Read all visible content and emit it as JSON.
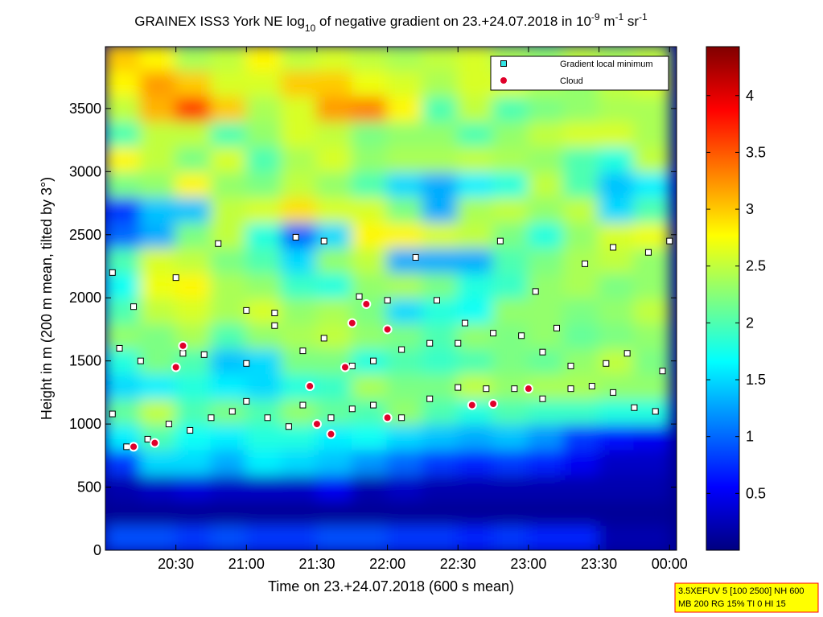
{
  "chart_data": {
    "type": "heatmap",
    "title": [
      "GRAINEX ISS3 York NE log",
      "10",
      " of negative gradient on 23.+24.07.2018 in 10",
      "-9",
      " m",
      "-1",
      " sr",
      "-1"
    ],
    "title_shift": [
      "none",
      "sub",
      "none",
      "sup",
      "none",
      "sup",
      "none",
      "sup"
    ],
    "x_label": "Time on 23.+24.07.2018 (600 s mean)",
    "y_label": "Height in m (200 m mean, tilted by 3°)",
    "note": [
      "3.5XEFUV 5 [100 2500] NH 600",
      "MB 200 RG 15% TI 0 HI 15"
    ],
    "xlim": [
      20.0,
      24.05
    ],
    "xticks": [
      {
        "value": 20.5,
        "label": "20:30"
      },
      {
        "value": 21.0,
        "label": "21:00"
      },
      {
        "value": 21.5,
        "label": "21:30"
      },
      {
        "value": 22.0,
        "label": "22:00"
      },
      {
        "value": 22.5,
        "label": "22:30"
      },
      {
        "value": 23.0,
        "label": "23:00"
      },
      {
        "value": 23.5,
        "label": "23:30"
      },
      {
        "value": 24.0,
        "label": "00:00"
      }
    ],
    "ylim": [
      0,
      3990
    ],
    "yticks": [
      0,
      500,
      1000,
      1500,
      2000,
      2500,
      3000,
      3500
    ],
    "clim": [
      0,
      4.43
    ],
    "cticks": [
      0.5,
      1,
      1.5,
      2,
      2.5,
      3,
      3.5,
      4
    ],
    "colormap": "jet",
    "x": [
      20.125,
      20.375,
      20.625,
      20.875,
      21.125,
      21.375,
      21.625,
      21.875,
      22.125,
      22.375,
      22.625,
      22.875,
      23.125,
      23.375,
      23.625,
      23.875
    ],
    "y": [
      100,
      300,
      500,
      700,
      900,
      1100,
      1300,
      1500,
      1700,
      1900,
      2100,
      2300,
      2500,
      2700,
      2900,
      3100,
      3300,
      3500,
      3700,
      3900
    ],
    "z": [
      [
        0.9,
        0.9,
        0.8,
        0.9,
        0.8,
        0.8,
        0.9,
        0.9,
        0.8,
        0.8,
        0.7,
        0.8,
        0.7,
        0.7,
        0.2,
        0.2
      ],
      [
        0.1,
        0.1,
        0.1,
        0.1,
        0.1,
        0.1,
        0.1,
        0.1,
        0.1,
        0.1,
        0.1,
        0.1,
        0.1,
        0.1,
        0.1,
        0.1
      ],
      [
        0.2,
        0.3,
        0.4,
        0.3,
        0.3,
        0.3,
        0.5,
        0.2,
        0.3,
        0.2,
        0.2,
        0.2,
        0.2,
        0.2,
        0.2,
        0.2
      ],
      [
        0.8,
        1.5,
        1.5,
        1.3,
        1.6,
        1.5,
        1.4,
        1.2,
        1.0,
        0.8,
        0.7,
        0.8,
        0.7,
        0.5,
        0.3,
        0.3
      ],
      [
        1.6,
        2.0,
        1.7,
        1.6,
        1.8,
        1.8,
        1.6,
        1.7,
        1.5,
        1.4,
        1.3,
        1.4,
        1.2,
        0.8,
        0.6,
        0.5
      ],
      [
        2.1,
        2.5,
        2.0,
        2.2,
        2.0,
        2.3,
        2.1,
        2.0,
        2.3,
        2.0,
        1.8,
        2.0,
        1.9,
        1.9,
        1.8,
        1.8
      ],
      [
        1.5,
        1.6,
        1.8,
        1.6,
        1.5,
        1.8,
        1.9,
        2.4,
        2.2,
        2.2,
        2.5,
        2.3,
        2.4,
        2.4,
        2.3,
        2.3
      ],
      [
        1.8,
        2.2,
        2.0,
        1.4,
        1.5,
        2.2,
        2.2,
        1.8,
        2.0,
        1.9,
        2.0,
        2.2,
        2.1,
        2.3,
        2.5,
        2.2
      ],
      [
        2.3,
        2.2,
        2.4,
        2.0,
        2.3,
        2.4,
        2.5,
        2.3,
        2.2,
        2.0,
        2.3,
        2.2,
        2.3,
        2.1,
        2.2,
        2.3
      ],
      [
        2.0,
        2.5,
        2.6,
        2.4,
        2.6,
        2.3,
        2.4,
        2.2,
        1.5,
        1.8,
        1.7,
        2.3,
        2.3,
        2.2,
        2.3,
        2.5
      ],
      [
        1.7,
        2.7,
        2.8,
        2.4,
        2.3,
        1.9,
        1.8,
        2.3,
        2.4,
        2.2,
        1.8,
        1.9,
        2.3,
        2.4,
        2.2,
        2.3
      ],
      [
        2.0,
        2.6,
        2.5,
        2.2,
        2.0,
        1.5,
        2.3,
        2.5,
        1.3,
        1.3,
        1.3,
        2.0,
        2.2,
        2.4,
        2.5,
        2.3
      ],
      [
        1.0,
        1.3,
        2.2,
        2.5,
        1.8,
        1.0,
        1.5,
        2.8,
        2.8,
        2.6,
        2.5,
        2.2,
        1.8,
        2.3,
        2.6,
        2.7
      ],
      [
        0.8,
        1.4,
        1.4,
        2.5,
        2.6,
        2.9,
        2.6,
        2.6,
        2.2,
        1.3,
        2.4,
        2.5,
        2.3,
        2.5,
        1.5,
        2.0
      ],
      [
        2.2,
        2.3,
        2.8,
        2.3,
        2.2,
        2.5,
        2.3,
        2.0,
        1.5,
        1.3,
        1.6,
        1.8,
        2.5,
        2.0,
        1.4,
        1.6
      ],
      [
        2.8,
        2.5,
        2.2,
        2.6,
        2.0,
        2.4,
        2.6,
        2.3,
        2.4,
        2.4,
        2.5,
        2.4,
        2.3,
        2.0,
        1.8,
        2.5
      ],
      [
        2.0,
        2.5,
        2.5,
        2.0,
        2.3,
        2.6,
        2.5,
        2.2,
        2.3,
        2.3,
        2.0,
        2.3,
        2.5,
        2.6,
        2.6,
        2.4
      ],
      [
        2.5,
        3.1,
        3.6,
        3.0,
        2.4,
        2.6,
        3.2,
        3.3,
        2.8,
        2.0,
        2.5,
        2.0,
        2.2,
        2.3,
        2.4,
        2.4
      ],
      [
        2.8,
        3.2,
        3.0,
        2.6,
        2.6,
        3.0,
        3.0,
        2.7,
        2.6,
        2.4,
        2.6,
        2.6,
        2.4,
        2.3,
        2.5,
        2.6
      ],
      [
        3.0,
        2.8,
        2.4,
        2.5,
        2.8,
        2.5,
        2.6,
        2.5,
        2.4,
        2.5,
        2.6,
        2.4,
        2.3,
        2.5,
        2.4,
        2.5
      ]
    ],
    "series": [
      {
        "name": "Gradient local minimum",
        "marker": "square",
        "color": "#33e6e6",
        "point_color": "#ffffff",
        "x": [
          20.05,
          20.15,
          20.3,
          20.45,
          20.6,
          20.75,
          20.9,
          21.0,
          21.15,
          21.3,
          21.4,
          21.6,
          21.75,
          21.9,
          22.1,
          22.3,
          22.5,
          22.7,
          22.9,
          23.1,
          23.3,
          23.45,
          23.6,
          23.75,
          23.9,
          20.1,
          20.25,
          20.55,
          20.7,
          21.0,
          21.2,
          21.4,
          21.55,
          21.75,
          21.9,
          22.1,
          22.3,
          22.5,
          22.75,
          22.95,
          23.1,
          23.3,
          23.55,
          23.7,
          23.95,
          20.05,
          20.2,
          20.5,
          20.8,
          21.0,
          21.2,
          21.35,
          21.55,
          21.8,
          22.0,
          22.2,
          22.35,
          22.55,
          22.8,
          23.05,
          23.2,
          23.4,
          23.6,
          23.85,
          24.0
        ],
        "y": [
          1080,
          820,
          880,
          1000,
          950,
          1050,
          1100,
          1180,
          1050,
          980,
          1150,
          1050,
          1120,
          1150,
          1050,
          1200,
          1290,
          1280,
          1280,
          1200,
          1280,
          1300,
          1250,
          1130,
          1100,
          1600,
          1500,
          1560,
          1550,
          1480,
          1780,
          1580,
          1680,
          1460,
          1500,
          1590,
          1640,
          1640,
          1720,
          1700,
          1570,
          1460,
          1480,
          1560,
          1420,
          2200,
          1930,
          2160,
          2430,
          1900,
          1880,
          2480,
          2450,
          2010,
          1980,
          2320,
          1980,
          1800,
          2450,
          2050,
          1760,
          2270,
          2400,
          2360,
          2450
        ]
      },
      {
        "name": "Cloud",
        "marker": "circle",
        "color": "#e0002a",
        "point_color": "#e0002a",
        "x": [
          20.2,
          20.35,
          20.5,
          20.55,
          21.5,
          21.6,
          21.75,
          21.85,
          22.0,
          22.0,
          22.6,
          22.75,
          23.0,
          21.45,
          21.7
        ],
        "y": [
          820,
          850,
          1450,
          1620,
          1000,
          920,
          1800,
          1950,
          1050,
          1750,
          1150,
          1160,
          1280,
          1300,
          1450
        ]
      }
    ]
  }
}
